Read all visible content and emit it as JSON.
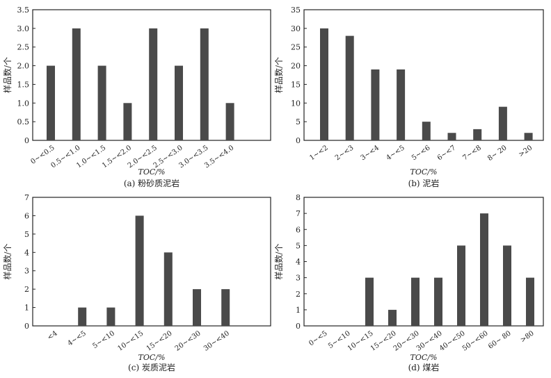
{
  "chart_data": [
    {
      "type": "bar",
      "caption": "(a) 粉砂质泥岩",
      "xlabel": "TOC/%",
      "ylabel": "样品数/个",
      "categories": [
        "0~<0.5",
        "0.5~<1.0",
        "1.0~<1.5",
        "1.5~<2.0",
        "2.0~<2.5",
        "2.5~<3.0",
        "3.0~<3.5",
        "3.5~<4.0"
      ],
      "values": [
        2,
        3,
        2,
        1,
        3,
        2,
        3,
        1
      ],
      "ylim": [
        0,
        3.5
      ],
      "yticks": [
        "0",
        "0.5",
        "1.0",
        "1.5",
        "2.0",
        "2.5",
        "3.0",
        "3.5"
      ],
      "bar_color": "#4a4a4a"
    },
    {
      "type": "bar",
      "caption": "(b) 泥岩",
      "xlabel": "TOC/%",
      "ylabel": "样品数/个",
      "categories": [
        "1~<2",
        "2~<3",
        "3~<4",
        "4~<5",
        "5~<6",
        "6~<7",
        "7~<8",
        "8~ 20",
        ">20"
      ],
      "values": [
        30,
        28,
        19,
        19,
        5,
        2,
        3,
        9,
        2
      ],
      "ylim": [
        0,
        35
      ],
      "yticks": [
        "0",
        "5",
        "10",
        "15",
        "20",
        "25",
        "30",
        "35"
      ],
      "bar_color": "#4a4a4a"
    },
    {
      "type": "bar",
      "caption": "(c) 炭质泥岩",
      "xlabel": "TOC/%",
      "ylabel": "样品数/个",
      "categories": [
        "<4",
        "4~<5",
        "5~<10",
        "10~<15",
        "15~<20",
        "20~<30",
        "30~<40"
      ],
      "values": [
        0,
        1,
        1,
        6,
        4,
        2,
        2
      ],
      "ylim": [
        0,
        7
      ],
      "yticks": [
        "0",
        "1",
        "2",
        "3",
        "4",
        "5",
        "6",
        "7"
      ],
      "bar_color": "#4a4a4a"
    },
    {
      "type": "bar",
      "caption": "(d) 煤岩",
      "xlabel": "TOC/%",
      "ylabel": "样品数/个",
      "categories": [
        "0~<5",
        "5~<10",
        "10~<15",
        "15~<20",
        "20~<30",
        "30~<40",
        "40~<50",
        "50~<60",
        "60~ 80",
        ">80"
      ],
      "values": [
        0,
        0,
        3,
        1,
        3,
        3,
        5,
        7,
        5,
        3
      ],
      "ylim": [
        0,
        8
      ],
      "yticks": [
        "0",
        "1",
        "2",
        "3",
        "4",
        "5",
        "6",
        "7",
        "8"
      ],
      "bar_color": "#4a4a4a"
    }
  ]
}
